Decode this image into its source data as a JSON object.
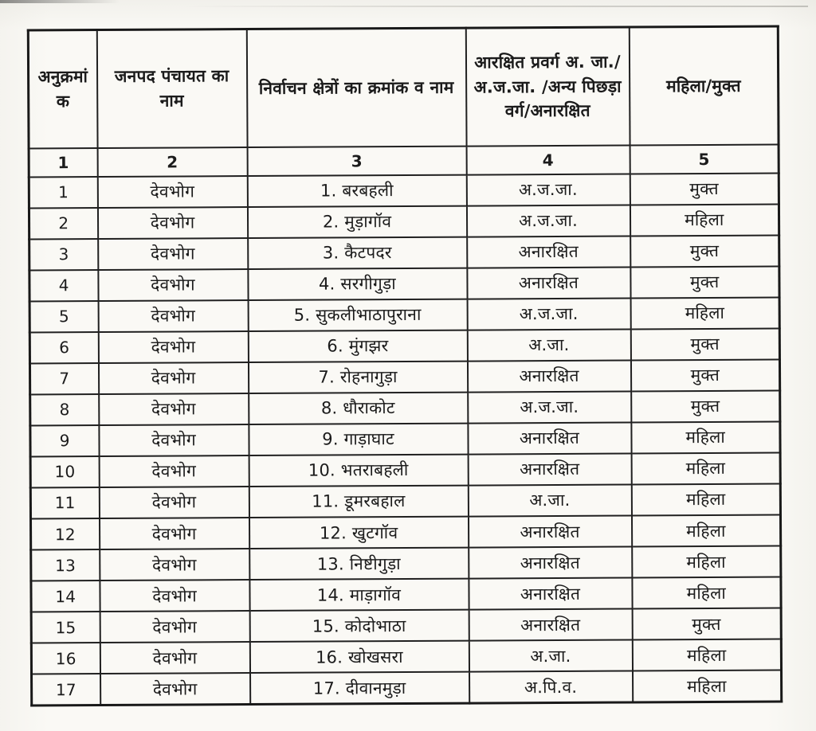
{
  "table": {
    "headers": [
      "अनुक्रमांक",
      "जनपद पंचायत का नाम",
      "निर्वाचन क्षेत्रों का क्रमांक व नाम",
      "आरक्षित प्रवर्ग अ. जा./अ.ज.जा. /अन्य पिछड़ा वर्ग/अनारक्षित",
      "महिला/मुक्त"
    ],
    "column_numbers": [
      "1",
      "2",
      "3",
      "4",
      "5"
    ],
    "rows": [
      {
        "sno": "1",
        "janpad": "देवभोग",
        "constituency": "1. बरबहली",
        "category": "अ.ज.जा.",
        "status": "मुक्त"
      },
      {
        "sno": "2",
        "janpad": "देवभोग",
        "constituency": "2. मुड़ागॉव",
        "category": "अ.ज.जा.",
        "status": "महिला"
      },
      {
        "sno": "3",
        "janpad": "देवभोग",
        "constituency": "3. कैटपदर",
        "category": "अनारक्षित",
        "status": "मुक्त"
      },
      {
        "sno": "4",
        "janpad": "देवभोग",
        "constituency": "4. सरगीगुड़ा",
        "category": "अनारक्षित",
        "status": "मुक्त"
      },
      {
        "sno": "5",
        "janpad": "देवभोग",
        "constituency": "5. सुकलीभाठापुराना",
        "category": "अ.ज.जा.",
        "status": "महिला"
      },
      {
        "sno": "6",
        "janpad": "देवभोग",
        "constituency": "6. मुंगझर",
        "category": "अ.जा.",
        "status": "मुक्त"
      },
      {
        "sno": "7",
        "janpad": "देवभोग",
        "constituency": "7. रोहनागुड़ा",
        "category": "अनारक्षित",
        "status": "मुक्त"
      },
      {
        "sno": "8",
        "janpad": "देवभोग",
        "constituency": "8. धौराकोट",
        "category": "अ.ज.जा.",
        "status": "मुक्त"
      },
      {
        "sno": "9",
        "janpad": "देवभोग",
        "constituency": "9. गाड़ाघाट",
        "category": "अनारक्षित",
        "status": "महिला"
      },
      {
        "sno": "10",
        "janpad": "देवभोग",
        "constituency": "10. भतराबहली",
        "category": "अनारक्षित",
        "status": "महिला"
      },
      {
        "sno": "11",
        "janpad": "देवभोग",
        "constituency": "11. डूमरबहाल",
        "category": "अ.जा.",
        "status": "महिला"
      },
      {
        "sno": "12",
        "janpad": "देवभोग",
        "constituency": "12. खुटगॉव",
        "category": "अनारक्षित",
        "status": "महिला"
      },
      {
        "sno": "13",
        "janpad": "देवभोग",
        "constituency": "13. निष्टीगुड़ा",
        "category": "अनारक्षित",
        "status": "महिला"
      },
      {
        "sno": "14",
        "janpad": "देवभोग",
        "constituency": "14. माड़ागॉव",
        "category": "अनारक्षित",
        "status": "महिला"
      },
      {
        "sno": "15",
        "janpad": "देवभोग",
        "constituency": "15. कोदोभाठा",
        "category": "अनारक्षित",
        "status": "मुक्त"
      },
      {
        "sno": "16",
        "janpad": "देवभोग",
        "constituency": "16. खोखसरा",
        "category": "अ.जा.",
        "status": "महिला"
      },
      {
        "sno": "17",
        "janpad": "देवभोग",
        "constituency": "17. दीवानमुड़ा",
        "category": "अ.पि.व.",
        "status": "महिला"
      }
    ]
  }
}
